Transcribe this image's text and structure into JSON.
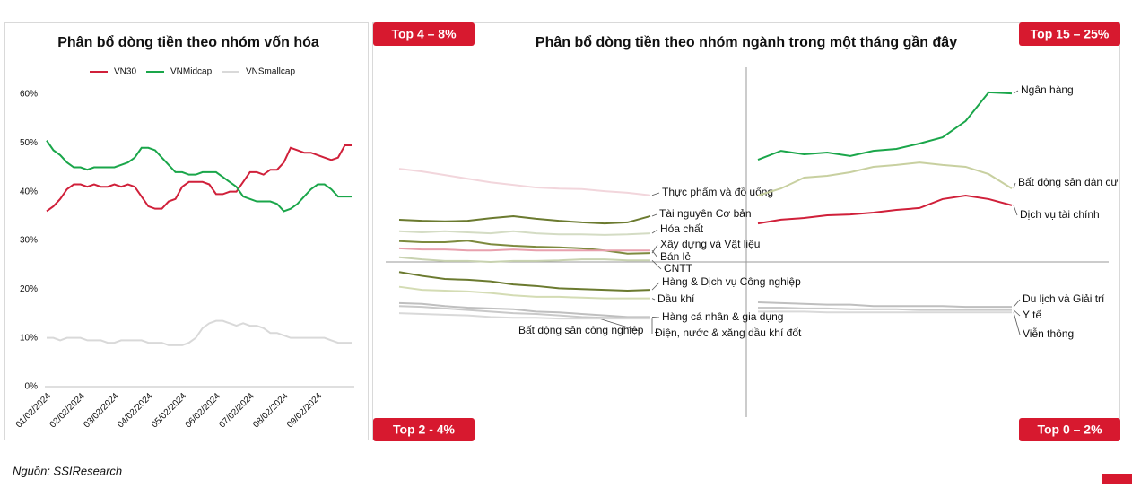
{
  "chart_data": [
    {
      "type": "line",
      "title": "Phân bổ dòng tiền theo nhóm vốn hóa",
      "legend": "top",
      "categories": [
        "01/02/2024",
        null,
        null,
        null,
        null,
        "02/02/2024",
        null,
        null,
        null,
        null,
        "03/02/2024",
        null,
        null,
        null,
        null,
        "04/02/2024",
        null,
        null,
        null,
        null,
        "05/02/2024",
        null,
        null,
        null,
        null,
        "06/02/2024",
        null,
        null,
        null,
        null,
        "07/02/2024",
        null,
        null,
        null,
        null,
        "08/02/2024",
        null,
        null,
        null,
        null,
        "09/02/2024",
        null,
        null,
        null,
        null,
        null
      ],
      "ylim": [
        0,
        60
      ],
      "yticks": [
        {
          "value": 0,
          "label": "0%"
        },
        {
          "value": 10,
          "label": "10%"
        },
        {
          "value": 20,
          "label": "20%"
        },
        {
          "value": 30,
          "label": "30%"
        },
        {
          "value": 40,
          "label": "40%"
        },
        {
          "value": 50,
          "label": "50%"
        },
        {
          "value": 60,
          "label": "60%"
        }
      ],
      "series": [
        {
          "name": "VN30",
          "color": "#d0203a",
          "values": [
            36,
            37,
            38.5,
            40.5,
            41.5,
            41.5,
            41,
            41.5,
            41,
            41,
            41.5,
            41,
            41.5,
            41,
            39,
            37,
            36.5,
            36.5,
            38,
            38.5,
            41,
            42,
            42,
            42,
            41.5,
            39.5,
            39.5,
            40,
            40,
            42,
            44,
            44,
            43.5,
            44.5,
            44.5,
            46,
            49,
            48.5,
            48,
            48,
            47.5,
            47,
            46.5,
            47,
            49.5,
            49.5
          ]
        },
        {
          "name": "VNMidcap",
          "color": "#1aa64a",
          "values": [
            50.5,
            48.5,
            47.5,
            46,
            45,
            45,
            44.5,
            45,
            45,
            45,
            45,
            45.5,
            46,
            47,
            49,
            49,
            48.5,
            47,
            45.5,
            44,
            44,
            43.5,
            43.5,
            44,
            44,
            44,
            43,
            42,
            41,
            39,
            38.5,
            38,
            38,
            38,
            37.5,
            36,
            36.5,
            37.5,
            39,
            40.5,
            41.5,
            41.5,
            40.5,
            39,
            39,
            39
          ]
        },
        {
          "name": "VNSmallcap",
          "color": "#d9d9d9",
          "values": [
            10,
            10,
            9.5,
            10,
            10,
            10,
            9.5,
            9.5,
            9.5,
            9,
            9,
            9.5,
            9.5,
            9.5,
            9.5,
            9,
            9,
            9,
            8.5,
            8.5,
            8.5,
            9,
            10,
            12,
            13,
            13.5,
            13.5,
            13,
            12.5,
            13,
            12.5,
            12.5,
            12,
            11,
            11,
            10.5,
            10,
            10,
            10,
            10,
            10,
            10,
            9.5,
            9,
            9,
            9
          ]
        }
      ]
    },
    {
      "type": "quadrant-lines",
      "title": "Phân bổ dòng tiền theo nhóm ngành trong một tháng gần đây",
      "quadrants": [
        {
          "label": "Top 4 – 8%",
          "ylim": [
            4,
            8
          ],
          "series": [
            {
              "name": "Thực phẩm và đồ uống",
              "color": "#f2d6dc",
              "values": [
                5.79,
                5.74,
                5.67,
                5.6,
                5.53,
                5.48,
                5.43,
                5.41,
                5.4,
                5.36,
                5.33,
                5.28
              ]
            },
            {
              "name": "Tài nguyên Cơ bản",
              "color": "#6b7a2f",
              "values": [
                4.81,
                4.79,
                4.78,
                4.79,
                4.84,
                4.88,
                4.83,
                4.79,
                4.76,
                4.74,
                4.76,
                4.88
              ]
            },
            {
              "name": "Hóa chất",
              "color": "#d4dcc4",
              "values": [
                4.59,
                4.57,
                4.59,
                4.57,
                4.55,
                4.59,
                4.55,
                4.53,
                4.53,
                4.52,
                4.53,
                4.55
              ]
            },
            {
              "name": "Xây dựng và Vật liệu",
              "color": "#7d8a3e",
              "values": [
                4.4,
                4.38,
                4.38,
                4.41,
                4.34,
                4.31,
                4.29,
                4.28,
                4.26,
                4.22,
                4.16,
                4.17
              ]
            },
            {
              "name": "Bán lẻ",
              "color": "#e8a0ad",
              "values": [
                4.26,
                4.24,
                4.24,
                4.22,
                4.22,
                4.24,
                4.22,
                4.22,
                4.22,
                4.22,
                4.22,
                4.22
              ]
            },
            {
              "name": "CNTT",
              "color": "#c8d2b0",
              "values": [
                4.09,
                4.05,
                4.02,
                4.02,
                4.0,
                4.02,
                4.02,
                4.03,
                4.05,
                4.05,
                4.03,
                4.03
              ]
            }
          ]
        },
        {
          "label": "Top 15 – 25%",
          "ylim": [
            15,
            25
          ],
          "series": [
            {
              "name": "Ngân hàng",
              "color": "#1aa64a",
              "values": [
                19.91,
                20.34,
                20.17,
                20.26,
                20.09,
                20.34,
                20.43,
                20.69,
                20.99,
                21.77,
                23.15,
                23.1
              ]
            },
            {
              "name": "Bất động sản dân cư",
              "color": "#c8d0a0",
              "values": [
                18.19,
                18.53,
                19.05,
                19.14,
                19.31,
                19.57,
                19.66,
                19.78,
                19.66,
                19.57,
                19.22,
                18.53
              ]
            },
            {
              "name": "Dịch vụ tài chính",
              "color": "#d0203a",
              "values": [
                16.85,
                17.03,
                17.11,
                17.24,
                17.28,
                17.37,
                17.5,
                17.59,
                18.02,
                18.19,
                18.02,
                17.72
              ]
            }
          ]
        },
        {
          "label": "Top 2 - 4%",
          "ylim": [
            2,
            4
          ],
          "series": [
            {
              "name": "Hàng & Dịch vụ Công nghiệp",
              "color": "#6b7a2f",
              "values": [
                3.87,
                3.82,
                3.78,
                3.77,
                3.75,
                3.71,
                3.69,
                3.66,
                3.65,
                3.64,
                3.63,
                3.64
              ]
            },
            {
              "name": "Dầu khí",
              "color": "#d4dcb4",
              "values": [
                3.68,
                3.64,
                3.63,
                3.62,
                3.6,
                3.57,
                3.55,
                3.55,
                3.54,
                3.53,
                3.53,
                3.53
              ]
            },
            {
              "name": "Hàng cá nhân & gia dụng",
              "color": "#bfbfbf",
              "values": [
                3.47,
                3.46,
                3.43,
                3.41,
                3.4,
                3.39,
                3.36,
                3.35,
                3.33,
                3.31,
                3.29,
                3.29
              ]
            },
            {
              "name": "Bất động sản công nghiệp",
              "color": "#c9c9c9",
              "values": [
                3.43,
                3.42,
                3.4,
                3.38,
                3.36,
                3.34,
                3.33,
                3.31,
                3.29,
                3.28,
                3.28,
                3.28
              ]
            },
            {
              "name": "Điện, nước & xăng dầu khí đốt",
              "color": "#d9d9d9",
              "values": [
                3.34,
                3.33,
                3.32,
                3.31,
                3.29,
                3.28,
                3.28,
                3.27,
                3.27,
                3.27,
                3.27,
                3.27
              ]
            }
          ]
        },
        {
          "label": "Top 0 – 2%",
          "ylim": [
            0,
            2
          ],
          "series": [
            {
              "name": "Du lịch và Giải trí",
              "color": "#bfbfbf",
              "values": [
                1.48,
                1.47,
                1.46,
                1.45,
                1.45,
                1.43,
                1.43,
                1.43,
                1.43,
                1.42,
                1.42,
                1.42
              ]
            },
            {
              "name": "Y tế",
              "color": "#c9c9c9",
              "values": [
                1.41,
                1.41,
                1.4,
                1.4,
                1.39,
                1.39,
                1.39,
                1.38,
                1.38,
                1.38,
                1.38,
                1.38
              ]
            },
            {
              "name": "Viễn thông",
              "color": "#d9d9d9",
              "values": [
                1.36,
                1.36,
                1.36,
                1.35,
                1.35,
                1.35,
                1.35,
                1.35,
                1.35,
                1.35,
                1.35,
                1.35
              ]
            }
          ]
        }
      ]
    },
    {
      "source": "Nguồn: SSIResearch"
    }
  ]
}
